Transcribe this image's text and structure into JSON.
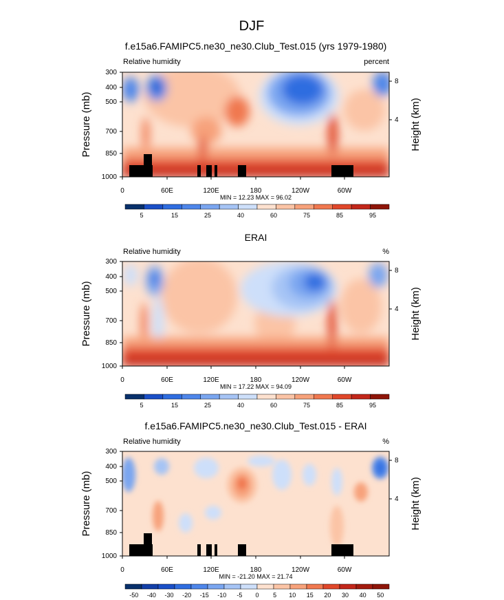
{
  "figure": {
    "title": "DJF"
  },
  "chart_data": [
    {
      "type": "heatmap",
      "title": "f.e15a6.FAMIPC5.ne30_ne30.Club_Test.015 (yrs 1979-1980)",
      "left_label": "Relative humidity",
      "right_label": "percent",
      "ylabel": "Pressure (mb)",
      "ylabel_right": "Height (km)",
      "x_ticks": [
        "0",
        "60E",
        "120E",
        "180",
        "120W",
        "60W"
      ],
      "y_ticks": [
        "300",
        "400",
        "500",
        "700",
        "850",
        "1000"
      ],
      "y_right_ticks": [
        "8",
        "4"
      ],
      "minmax": "MIN = 12.23   MAX = 96.02",
      "stats": {
        "min": 12.23,
        "max": 96.02
      },
      "colorbar": {
        "labels": [
          "5",
          "15",
          "25",
          "40",
          "60",
          "75",
          "85",
          "95"
        ],
        "colors": [
          "#08306b",
          "#1a4fc7",
          "#2f6de0",
          "#4e86ea",
          "#7aa6f0",
          "#a6c4f5",
          "#cddffa",
          "#fde1cf",
          "#fbc4a6",
          "#f7a27b",
          "#f0784f",
          "#e0472a",
          "#c2271a",
          "#8e1509"
        ]
      }
    },
    {
      "type": "heatmap",
      "title": "ERAI",
      "left_label": "Relative humidity",
      "right_label": "%",
      "ylabel": "Pressure (mb)",
      "ylabel_right": "Height (km)",
      "x_ticks": [
        "0",
        "60E",
        "120E",
        "180",
        "120W",
        "60W"
      ],
      "y_ticks": [
        "300",
        "400",
        "500",
        "700",
        "850",
        "1000"
      ],
      "y_right_ticks": [
        "8",
        "4"
      ],
      "minmax": "MIN = 17.22   MAX = 94.09",
      "stats": {
        "min": 17.22,
        "max": 94.09
      },
      "colorbar": {
        "labels": [
          "5",
          "15",
          "25",
          "40",
          "60",
          "75",
          "85",
          "95"
        ],
        "colors": [
          "#08306b",
          "#1a4fc7",
          "#2f6de0",
          "#4e86ea",
          "#7aa6f0",
          "#a6c4f5",
          "#cddffa",
          "#fde1cf",
          "#fbc4a6",
          "#f7a27b",
          "#f0784f",
          "#e0472a",
          "#c2271a",
          "#8e1509"
        ]
      }
    },
    {
      "type": "heatmap",
      "title": "f.e15a6.FAMIPC5.ne30_ne30.Club_Test.015 - ERAI",
      "left_label": "Relative humidity",
      "right_label": "%",
      "ylabel": "Pressure (mb)",
      "ylabel_right": "Height (km)",
      "x_ticks": [
        "0",
        "60E",
        "120E",
        "180",
        "120W",
        "60W"
      ],
      "y_ticks": [
        "300",
        "400",
        "500",
        "700",
        "850",
        "1000"
      ],
      "y_right_ticks": [
        "8",
        "4"
      ],
      "minmax": "MIN = -21.20   MAX = 21.74",
      "stats": {
        "min": -21.2,
        "max": 21.74
      },
      "colorbar": {
        "labels": [
          "-50",
          "-40",
          "-30",
          "-20",
          "-15",
          "-10",
          "-5",
          "0",
          "5",
          "10",
          "15",
          "20",
          "30",
          "40",
          "50"
        ],
        "colors": [
          "#08306b",
          "#123fa8",
          "#1a4fc7",
          "#2f6de0",
          "#4e86ea",
          "#7aa6f0",
          "#a6c4f5",
          "#cddffa",
          "#fde1cf",
          "#fbc4a6",
          "#f7a27b",
          "#f0784f",
          "#e0472a",
          "#c2271a",
          "#a31b0e",
          "#8e1509"
        ]
      }
    }
  ]
}
